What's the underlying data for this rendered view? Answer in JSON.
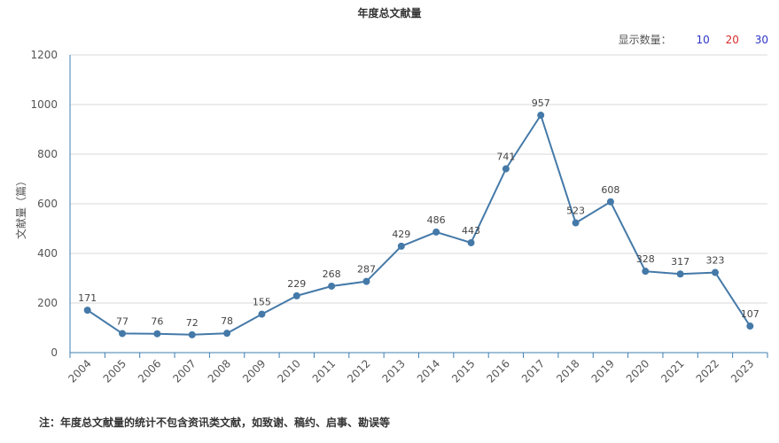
{
  "header": {
    "title": "年度总文献量"
  },
  "count_switch": {
    "label": "显示数量：",
    "options": [
      "10",
      "20",
      "30"
    ]
  },
  "note": "注：年度总文献量的统计不包含资讯类文献，如致谢、稿约、启事、勘误等",
  "colors": {
    "series": "#4479a8",
    "axis": "#3f7fb0",
    "grid": "#d9d9d9"
  },
  "chart_data": {
    "type": "line",
    "title": "年度总文献量",
    "xlabel": "",
    "ylabel": "文献量（篇）",
    "x": [
      "2004",
      "2005",
      "2006",
      "2007",
      "2008",
      "2009",
      "2010",
      "2011",
      "2012",
      "2013",
      "2014",
      "2015",
      "2016",
      "2017",
      "2018",
      "2019",
      "2020",
      "2021",
      "2022",
      "2023"
    ],
    "values": [
      171,
      77,
      76,
      72,
      78,
      155,
      229,
      268,
      287,
      429,
      486,
      443,
      741,
      957,
      523,
      608,
      328,
      317,
      323,
      107
    ],
    "ylim": [
      0,
      1200
    ],
    "yticks": [
      0,
      200,
      400,
      600,
      800,
      1000,
      1200
    ],
    "grid": true,
    "data_labels": true
  }
}
